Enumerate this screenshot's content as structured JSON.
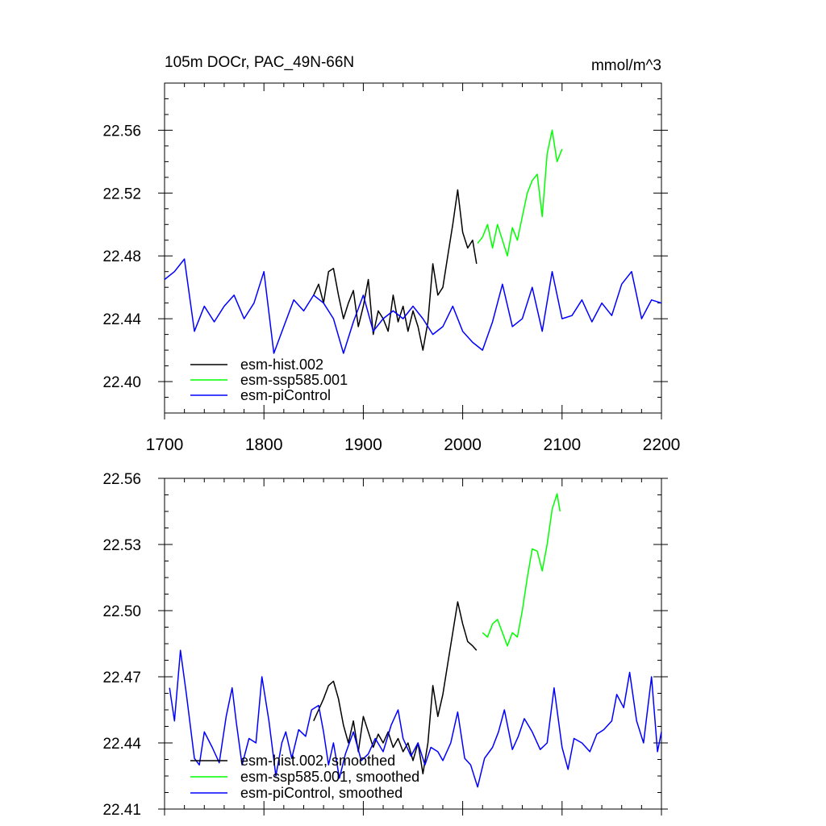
{
  "chart_data": [
    {
      "type": "line",
      "title": "105m DOCr, PAC_49N-66N",
      "units": "mmol/m^3",
      "xlim": [
        1700,
        2200
      ],
      "ylim": [
        22.38,
        22.59
      ],
      "xticks": [
        "1700",
        "1800",
        "1900",
        "2000",
        "2100",
        "2200"
      ],
      "yticks": [
        "22.40",
        "22.44",
        "22.48",
        "22.52",
        "22.56"
      ],
      "legend_position": "lower-left",
      "series": [
        {
          "name": "esm-hist.002",
          "color": "#000000",
          "x": [
            1850,
            1855,
            1860,
            1865,
            1870,
            1875,
            1880,
            1885,
            1890,
            1895,
            1900,
            1905,
            1910,
            1915,
            1920,
            1925,
            1930,
            1935,
            1940,
            1945,
            1950,
            1955,
            1960,
            1965,
            1970,
            1975,
            1980,
            1985,
            1990,
            1995,
            2000,
            2005,
            2010,
            2014
          ],
          "y": [
            22.455,
            22.462,
            22.45,
            22.47,
            22.472,
            22.455,
            22.44,
            22.45,
            22.458,
            22.435,
            22.448,
            22.465,
            22.43,
            22.445,
            22.44,
            22.432,
            22.455,
            22.438,
            22.448,
            22.432,
            22.445,
            22.435,
            22.42,
            22.438,
            22.475,
            22.455,
            22.46,
            22.48,
            22.5,
            22.522,
            22.495,
            22.485,
            22.49,
            22.475
          ]
        },
        {
          "name": "esm-ssp585.001",
          "color": "#00ff00",
          "x": [
            2015,
            2020,
            2025,
            2030,
            2035,
            2040,
            2045,
            2050,
            2055,
            2060,
            2065,
            2070,
            2075,
            2080,
            2085,
            2090,
            2095,
            2100
          ],
          "y": [
            22.488,
            22.492,
            22.5,
            22.485,
            22.5,
            22.49,
            22.48,
            22.498,
            22.49,
            22.505,
            22.52,
            22.528,
            22.532,
            22.505,
            22.545,
            22.56,
            22.54,
            22.548
          ]
        },
        {
          "name": "esm-piControl",
          "color": "#0000ff",
          "x": [
            1700,
            1710,
            1720,
            1730,
            1740,
            1750,
            1760,
            1770,
            1780,
            1790,
            1800,
            1810,
            1820,
            1830,
            1840,
            1850,
            1860,
            1870,
            1880,
            1890,
            1900,
            1910,
            1920,
            1930,
            1940,
            1950,
            1960,
            1970,
            1980,
            1990,
            2000,
            2010,
            2020,
            2030,
            2040,
            2050,
            2060,
            2070,
            2080,
            2090,
            2100,
            2110,
            2120,
            2130,
            2140,
            2150,
            2160,
            2170,
            2180,
            2190,
            2200
          ],
          "y": [
            22.465,
            22.47,
            22.478,
            22.432,
            22.448,
            22.438,
            22.448,
            22.455,
            22.44,
            22.45,
            22.47,
            22.418,
            22.435,
            22.452,
            22.445,
            22.455,
            22.45,
            22.44,
            22.418,
            22.438,
            22.455,
            22.432,
            22.44,
            22.445,
            22.44,
            22.448,
            22.44,
            22.43,
            22.435,
            22.448,
            22.432,
            22.425,
            22.42,
            22.438,
            22.462,
            22.435,
            22.44,
            22.46,
            22.432,
            22.47,
            22.44,
            22.442,
            22.452,
            22.438,
            22.45,
            22.442,
            22.462,
            22.47,
            22.44,
            22.452,
            22.45
          ]
        }
      ]
    },
    {
      "type": "line",
      "title": "",
      "xlim": [
        1700,
        2200
      ],
      "ylim": [
        22.41,
        22.56
      ],
      "yticks": [
        "22.41",
        "22.44",
        "22.47",
        "22.50",
        "22.53",
        "22.56"
      ],
      "legend_position": "lower-left",
      "series": [
        {
          "name": "esm-hist.002, smoothed",
          "color": "#000000",
          "x": [
            1850,
            1855,
            1860,
            1865,
            1870,
            1875,
            1880,
            1885,
            1890,
            1895,
            1900,
            1905,
            1910,
            1915,
            1920,
            1925,
            1930,
            1935,
            1940,
            1945,
            1950,
            1955,
            1960,
            1965,
            1970,
            1975,
            1980,
            1985,
            1990,
            1995,
            2000,
            2005,
            2010,
            2014
          ],
          "y": [
            22.45,
            22.455,
            22.46,
            22.466,
            22.468,
            22.46,
            22.448,
            22.44,
            22.45,
            22.436,
            22.452,
            22.445,
            22.438,
            22.444,
            22.44,
            22.445,
            22.438,
            22.442,
            22.436,
            22.44,
            22.432,
            22.44,
            22.426,
            22.44,
            22.466,
            22.452,
            22.462,
            22.476,
            22.49,
            22.504,
            22.494,
            22.486,
            22.484,
            22.482
          ]
        },
        {
          "name": "esm-ssp585.001, smoothed",
          "color": "#00ff00",
          "x": [
            2020,
            2025,
            2030,
            2035,
            2040,
            2045,
            2050,
            2055,
            2060,
            2065,
            2070,
            2075,
            2080,
            2085,
            2090,
            2095,
            2098
          ],
          "y": [
            22.49,
            22.488,
            22.494,
            22.496,
            22.49,
            22.484,
            22.49,
            22.488,
            22.5,
            22.515,
            22.528,
            22.527,
            22.518,
            22.53,
            22.546,
            22.553,
            22.545
          ]
        },
        {
          "name": "esm-piControl, smoothed",
          "color": "#0000ff",
          "x": [
            1705,
            1710,
            1716,
            1722,
            1730,
            1735,
            1740,
            1748,
            1755,
            1762,
            1768,
            1772,
            1778,
            1785,
            1792,
            1798,
            1805,
            1812,
            1818,
            1822,
            1828,
            1835,
            1842,
            1848,
            1855,
            1860,
            1865,
            1870,
            1876,
            1882,
            1890,
            1898,
            1905,
            1912,
            1920,
            1928,
            1935,
            1940,
            1948,
            1955,
            1962,
            1968,
            1975,
            1980,
            1988,
            1995,
            2002,
            2008,
            2015,
            2022,
            2030,
            2036,
            2042,
            2050,
            2056,
            2062,
            2070,
            2078,
            2085,
            2092,
            2100,
            2106,
            2112,
            2120,
            2128,
            2135,
            2142,
            2150,
            2155,
            2162,
            2168,
            2175,
            2182,
            2190,
            2196,
            2200
          ],
          "y": [
            22.465,
            22.45,
            22.482,
            22.462,
            22.433,
            22.43,
            22.445,
            22.438,
            22.431,
            22.452,
            22.465,
            22.45,
            22.43,
            22.442,
            22.44,
            22.47,
            22.45,
            22.425,
            22.44,
            22.445,
            22.433,
            22.446,
            22.443,
            22.455,
            22.457,
            22.445,
            22.43,
            22.44,
            22.424,
            22.435,
            22.445,
            22.432,
            22.435,
            22.442,
            22.436,
            22.448,
            22.455,
            22.442,
            22.434,
            22.44,
            22.43,
            22.438,
            22.436,
            22.432,
            22.44,
            22.454,
            22.433,
            22.43,
            22.42,
            22.433,
            22.438,
            22.445,
            22.455,
            22.437,
            22.443,
            22.451,
            22.445,
            22.437,
            22.44,
            22.465,
            22.438,
            22.428,
            22.442,
            22.44,
            22.436,
            22.444,
            22.446,
            22.45,
            22.462,
            22.456,
            22.472,
            22.45,
            22.44,
            22.47,
            22.436,
            22.445
          ]
        }
      ]
    }
  ]
}
